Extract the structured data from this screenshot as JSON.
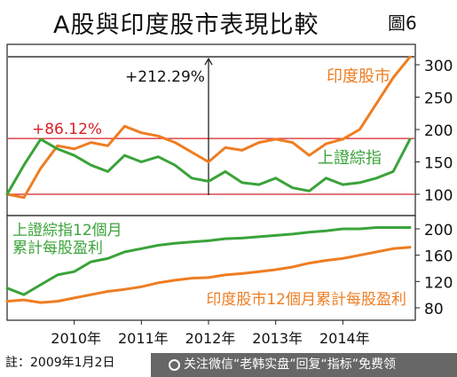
{
  "title": "A股與印度股市表現比較",
  "figure_label": "圖6",
  "note": "註：2009年1月2日",
  "watermark": "关注微信“老韩实盘”回复“指标”免费领",
  "colors": {
    "india": "#ee7d22",
    "shanghai": "#3aa33a",
    "red": "#d8202a"
  },
  "chart_data": [
    {
      "type": "line",
      "x": [
        "2009-01",
        "2009-04",
        "2009-07",
        "2009-10",
        "2010-01",
        "2010-04",
        "2010-07",
        "2010-10",
        "2011-01",
        "2011-04",
        "2011-07",
        "2011-10",
        "2012-01",
        "2012-04",
        "2012-07",
        "2012-10",
        "2013-01",
        "2013-04",
        "2013-07",
        "2013-10",
        "2014-01",
        "2014-04",
        "2014-07",
        "2014-10",
        "2014-12"
      ],
      "series": [
        {
          "name": "印度股市",
          "values": [
            100,
            95,
            140,
            175,
            170,
            180,
            175,
            205,
            195,
            190,
            180,
            165,
            150,
            172,
            168,
            180,
            185,
            180,
            160,
            178,
            185,
            200,
            240,
            280,
            312
          ]
        },
        {
          "name": "上證綜指",
          "values": [
            100,
            145,
            185,
            170,
            160,
            145,
            135,
            160,
            150,
            158,
            145,
            125,
            120,
            135,
            118,
            115,
            125,
            110,
            105,
            125,
            115,
            118,
            125,
            135,
            185
          ]
        }
      ],
      "ylim": [
        80,
        320
      ],
      "yticks": [
        100,
        150,
        200,
        250,
        300
      ],
      "reference_lines": [
        100,
        186.12,
        312.29
      ],
      "annotations": [
        {
          "text": "+212.29%",
          "x": "2012-01"
        },
        {
          "text": "+86.12%",
          "x": "2010-01"
        }
      ]
    },
    {
      "type": "line",
      "x": [
        "2009-01",
        "2009-04",
        "2009-07",
        "2009-10",
        "2010-01",
        "2010-04",
        "2010-07",
        "2010-10",
        "2011-01",
        "2011-04",
        "2011-07",
        "2011-10",
        "2012-01",
        "2012-04",
        "2012-07",
        "2012-10",
        "2013-01",
        "2013-04",
        "2013-07",
        "2013-10",
        "2014-01",
        "2014-04",
        "2014-07",
        "2014-10",
        "2014-12"
      ],
      "series": [
        {
          "name": "上證綜指12個月累計每股盈利",
          "values": [
            110,
            100,
            115,
            130,
            135,
            150,
            155,
            165,
            170,
            175,
            178,
            180,
            182,
            185,
            186,
            188,
            190,
            192,
            195,
            197,
            200,
            200,
            202,
            202,
            202
          ]
        },
        {
          "name": "印度股市12個月累計每股盈利",
          "values": [
            90,
            92,
            88,
            90,
            95,
            100,
            105,
            108,
            112,
            118,
            122,
            125,
            126,
            130,
            132,
            135,
            138,
            142,
            148,
            152,
            155,
            160,
            165,
            170,
            172
          ]
        }
      ],
      "ylim": [
        70,
        210
      ],
      "yticks": [
        80,
        120,
        160,
        200
      ]
    }
  ],
  "xticks": [
    "2010年",
    "2011年",
    "2012年",
    "2013年",
    "2014年"
  ]
}
